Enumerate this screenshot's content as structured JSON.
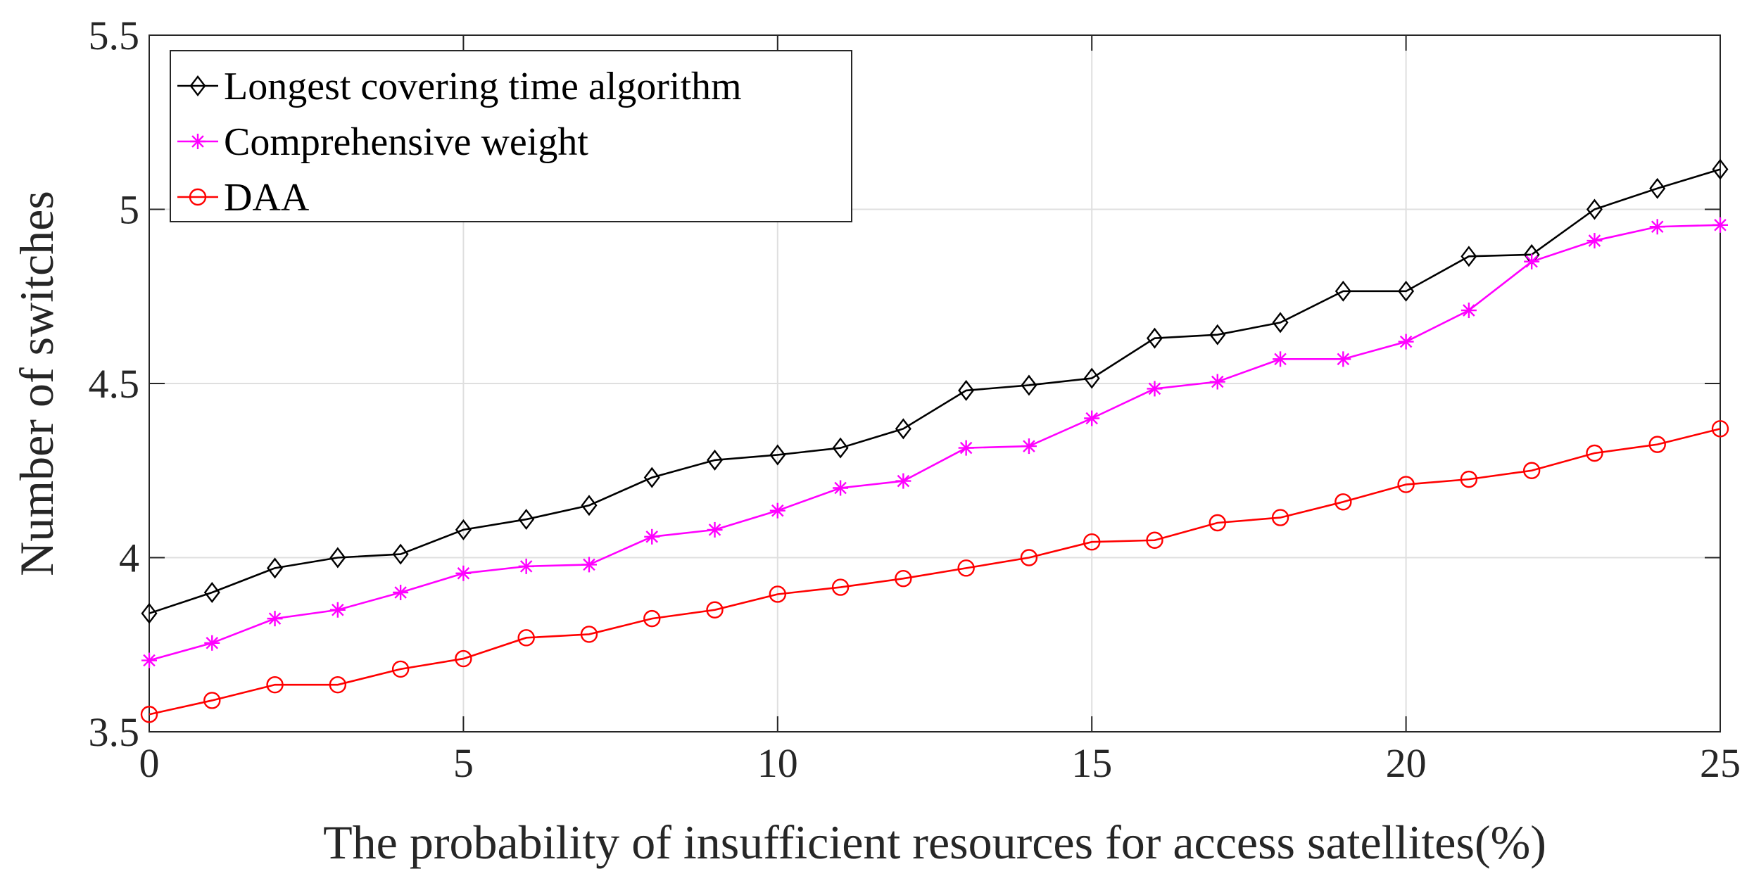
{
  "chart_data": {
    "type": "line",
    "title": "",
    "xlabel": "The probability of insufficient resources for access satellites(%)",
    "ylabel": "Number of switches",
    "xlim": [
      0,
      25
    ],
    "ylim": [
      3.5,
      5.5
    ],
    "xticks": [
      0,
      5,
      10,
      15,
      20,
      25
    ],
    "xtick_labels": [
      "0",
      "5",
      "10",
      "15",
      "20",
      "25"
    ],
    "yticks": [
      3.5,
      4,
      4.5,
      5,
      5.5
    ],
    "ytick_labels": [
      "3.5",
      "4",
      "4.5",
      "5",
      "5.5"
    ],
    "grid": true,
    "legend_position": "top-left",
    "x": [
      0,
      1,
      2,
      3,
      4,
      5,
      6,
      7,
      8,
      9,
      10,
      11,
      12,
      13,
      14,
      15,
      16,
      17,
      18,
      19,
      20,
      21,
      22,
      23,
      24,
      25
    ],
    "series": [
      {
        "name": "Longest covering time algorithm",
        "color": "#000000",
        "marker": "diamond",
        "values": [
          3.84,
          3.9,
          3.97,
          4.0,
          4.01,
          4.08,
          4.11,
          4.15,
          4.23,
          4.28,
          4.295,
          4.315,
          4.37,
          4.48,
          4.495,
          4.515,
          4.63,
          4.64,
          4.675,
          4.765,
          4.765,
          4.865,
          4.87,
          5.0,
          5.06,
          5.115
        ]
      },
      {
        "name": "Comprehensive weight",
        "color": "#ff00ff",
        "marker": "asterisk",
        "values": [
          3.705,
          3.755,
          3.825,
          3.85,
          3.9,
          3.955,
          3.975,
          3.98,
          4.06,
          4.08,
          4.135,
          4.2,
          4.22,
          4.315,
          4.32,
          4.4,
          4.485,
          4.505,
          4.57,
          4.57,
          4.62,
          4.71,
          4.85,
          4.91,
          4.95,
          4.955
        ]
      },
      {
        "name": "DAA",
        "color": "#ff0000",
        "marker": "circle",
        "values": [
          3.55,
          3.59,
          3.635,
          3.635,
          3.68,
          3.71,
          3.77,
          3.78,
          3.825,
          3.85,
          3.895,
          3.915,
          3.94,
          3.97,
          4.0,
          4.045,
          4.05,
          4.1,
          4.115,
          4.16,
          4.21,
          4.225,
          4.25,
          4.3,
          4.325,
          4.37
        ]
      }
    ]
  }
}
